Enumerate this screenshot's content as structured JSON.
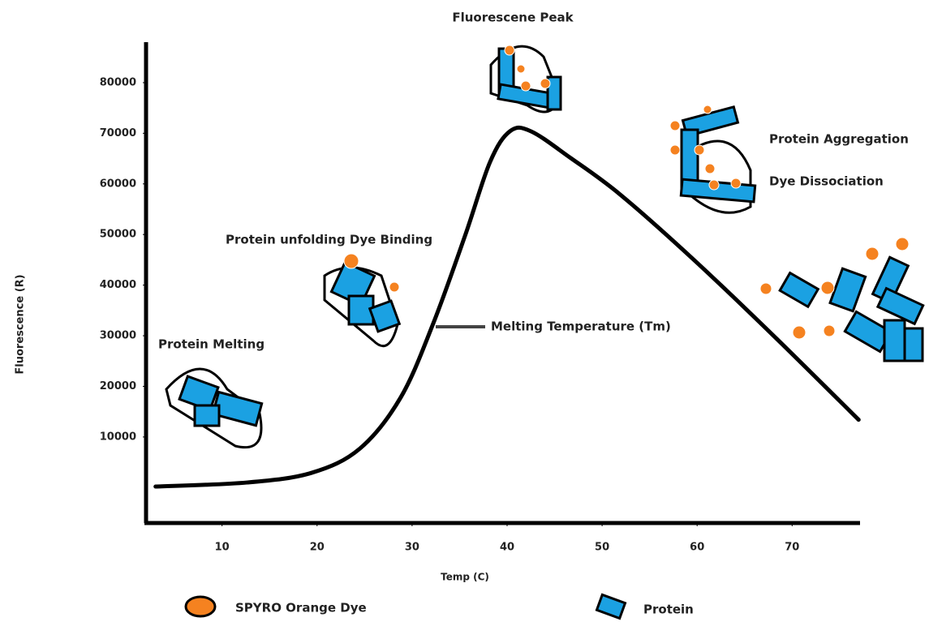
{
  "chart_data": {
    "type": "line",
    "x_label": "Temp (C)",
    "y_label": "Fluorescence (R)",
    "x": [
      3,
      12.6,
      19.4,
      24.5,
      28.8,
      32.2,
      35.6,
      38.2,
      40.3,
      42.5,
      46.7,
      51.9,
      59.6,
      68.1,
      77
    ],
    "values": [
      200,
      1000,
      2900,
      7700,
      17800,
      32300,
      49900,
      64300,
      70400,
      70400,
      65100,
      57900,
      45100,
      29900,
      13400
    ],
    "color": "#000000",
    "xlim": [
      2,
      78
    ],
    "xticks": [
      10,
      20,
      30,
      40,
      50,
      60,
      70
    ],
    "ylim": [
      -7000,
      88000
    ],
    "yticks": [
      10000,
      20000,
      30000,
      40000,
      50000,
      60000,
      70000,
      80000
    ],
    "grid": false,
    "annotations": [
      "Fluorescene Peak",
      "Protein Aggregation",
      "Dye Dissociation",
      "Protein unfolding Dye Binding",
      "Melting Temperature (Tm)",
      "Protein Melting"
    ],
    "legend": [
      "SPYRO Orange Dye",
      "Protein"
    ],
    "dye_color": "#f58220",
    "protein_color": "#1ba1e2"
  }
}
